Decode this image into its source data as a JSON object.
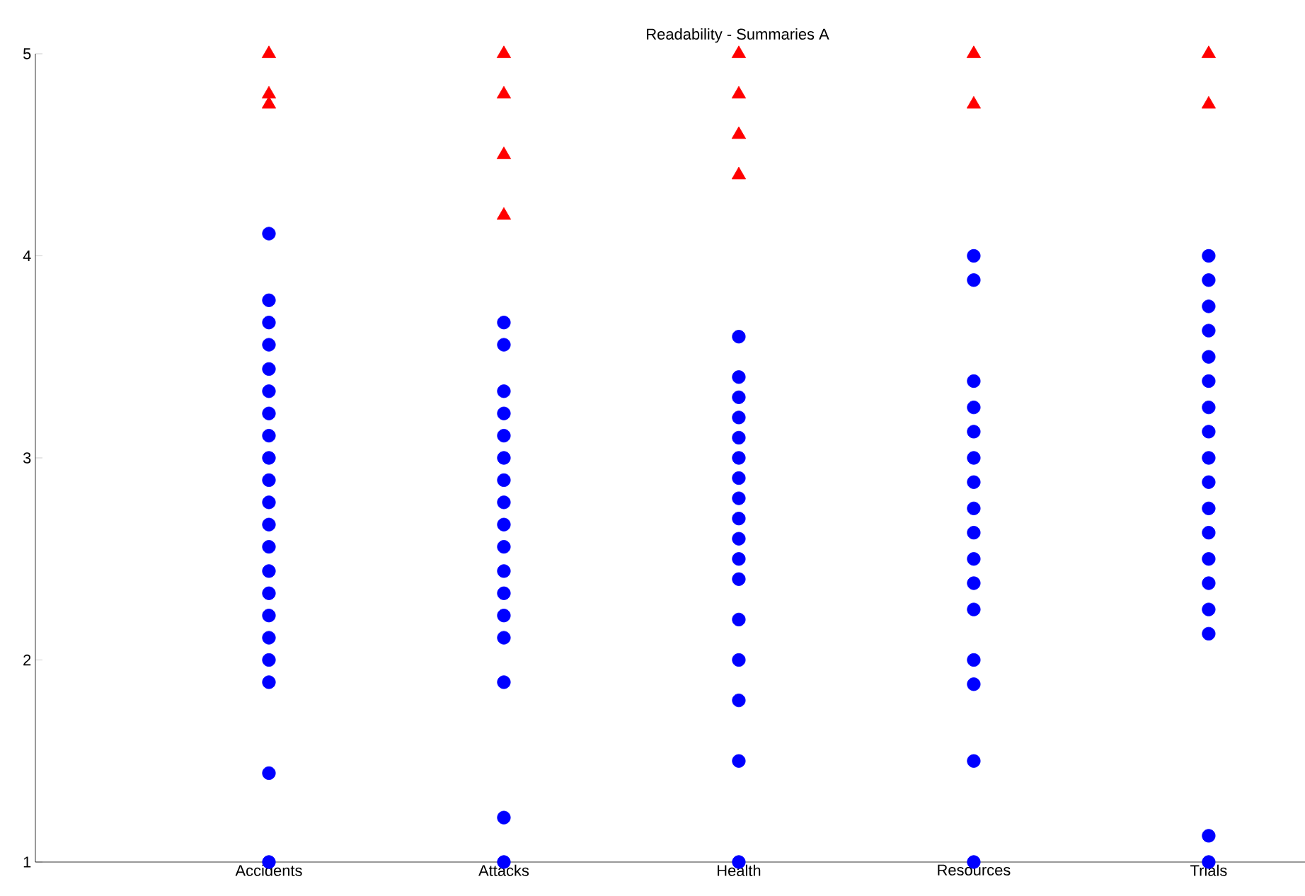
{
  "chart_data": {
    "type": "scatter",
    "title": "Readability - Summaries A",
    "categories": [
      "Accidents",
      "Attacks",
      "Health",
      "Resources",
      "Trials"
    ],
    "ylim": [
      1,
      5
    ],
    "yticks": [
      1,
      2,
      3,
      4,
      5
    ],
    "series": [
      {
        "color": "#0000ff",
        "marker": "circle",
        "x": [
          "Accidents",
          "Accidents",
          "Accidents",
          "Accidents",
          "Accidents",
          "Accidents",
          "Accidents",
          "Accidents",
          "Accidents",
          "Accidents",
          "Accidents",
          "Accidents",
          "Accidents",
          "Accidents",
          "Accidents",
          "Accidents",
          "Accidents",
          "Accidents",
          "Accidents",
          "Accidents",
          "Accidents",
          "Attacks",
          "Attacks",
          "Attacks",
          "Attacks",
          "Attacks",
          "Attacks",
          "Attacks",
          "Attacks",
          "Attacks",
          "Attacks",
          "Attacks",
          "Attacks",
          "Attacks",
          "Attacks",
          "Attacks",
          "Attacks",
          "Attacks",
          "Health",
          "Health",
          "Health",
          "Health",
          "Health",
          "Health",
          "Health",
          "Health",
          "Health",
          "Health",
          "Health",
          "Health",
          "Health",
          "Health",
          "Health",
          "Health",
          "Health",
          "Resources",
          "Resources",
          "Resources",
          "Resources",
          "Resources",
          "Resources",
          "Resources",
          "Resources",
          "Resources",
          "Resources",
          "Resources",
          "Resources",
          "Resources",
          "Resources",
          "Resources",
          "Resources",
          "Trials",
          "Trials",
          "Trials",
          "Trials",
          "Trials",
          "Trials",
          "Trials",
          "Trials",
          "Trials",
          "Trials",
          "Trials",
          "Trials",
          "Trials",
          "Trials",
          "Trials",
          "Trials",
          "Trials",
          "Trials"
        ],
        "values": [
          4.11,
          3.78,
          3.67,
          3.56,
          3.44,
          3.33,
          3.22,
          3.11,
          3.0,
          2.89,
          2.78,
          2.67,
          2.56,
          2.44,
          2.33,
          2.22,
          2.11,
          2.0,
          1.89,
          1.44,
          1.0,
          3.67,
          3.56,
          3.33,
          3.22,
          3.11,
          3.0,
          2.89,
          2.78,
          2.67,
          2.56,
          2.44,
          2.33,
          2.22,
          2.11,
          1.89,
          1.22,
          1.0,
          3.6,
          3.4,
          3.3,
          3.2,
          3.1,
          3.0,
          2.9,
          2.8,
          2.7,
          2.6,
          2.5,
          2.4,
          2.2,
          2.0,
          1.8,
          1.5,
          1.0,
          4.0,
          3.88,
          3.38,
          3.25,
          3.13,
          3.0,
          2.88,
          2.75,
          2.63,
          2.5,
          2.38,
          2.25,
          2.0,
          1.88,
          1.5,
          1.0,
          4.0,
          3.88,
          3.75,
          3.63,
          3.5,
          3.38,
          3.25,
          3.13,
          3.0,
          2.88,
          2.75,
          2.63,
          2.5,
          2.38,
          2.25,
          2.13,
          1.13,
          1.0
        ]
      },
      {
        "color": "#ff0000",
        "marker": "triangle",
        "x": [
          "Accidents",
          "Accidents",
          "Accidents",
          "Attacks",
          "Attacks",
          "Attacks",
          "Attacks",
          "Health",
          "Health",
          "Health",
          "Health",
          "Resources",
          "Resources",
          "Trials",
          "Trials"
        ],
        "values": [
          5.0,
          4.8,
          4.75,
          5.0,
          4.8,
          4.5,
          4.2,
          5.0,
          4.8,
          4.6,
          4.4,
          5.0,
          4.75,
          5.0,
          4.75
        ]
      }
    ]
  }
}
